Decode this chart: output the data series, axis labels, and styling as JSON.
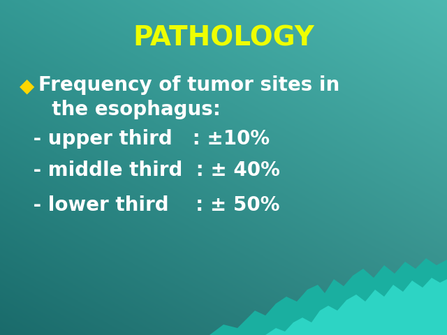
{
  "title": "PATHOLOGY",
  "title_color": "#EEFF00",
  "title_fontsize": 28,
  "title_fontweight": "bold",
  "bg_color_top_left": "#1A6B6B",
  "bg_color_bottom_right": "#4DB8B0",
  "text_color": "#FFFFFF",
  "bullet_color": "#FFD700",
  "bullet_char": "◆",
  "body_fontsize": 20,
  "body_fontweight": "bold",
  "bullet_line1": "Frequency of tumor sites in\n  the esophagus:",
  "line2": " - upper third   : ±10%",
  "line3": " - middle third  : ± 40%",
  "line4": " - lower third    : ± 50%",
  "wave_color1": "#2DD4C4",
  "wave_color2": "#1AAFA0",
  "wave_color3": "#0D9080"
}
